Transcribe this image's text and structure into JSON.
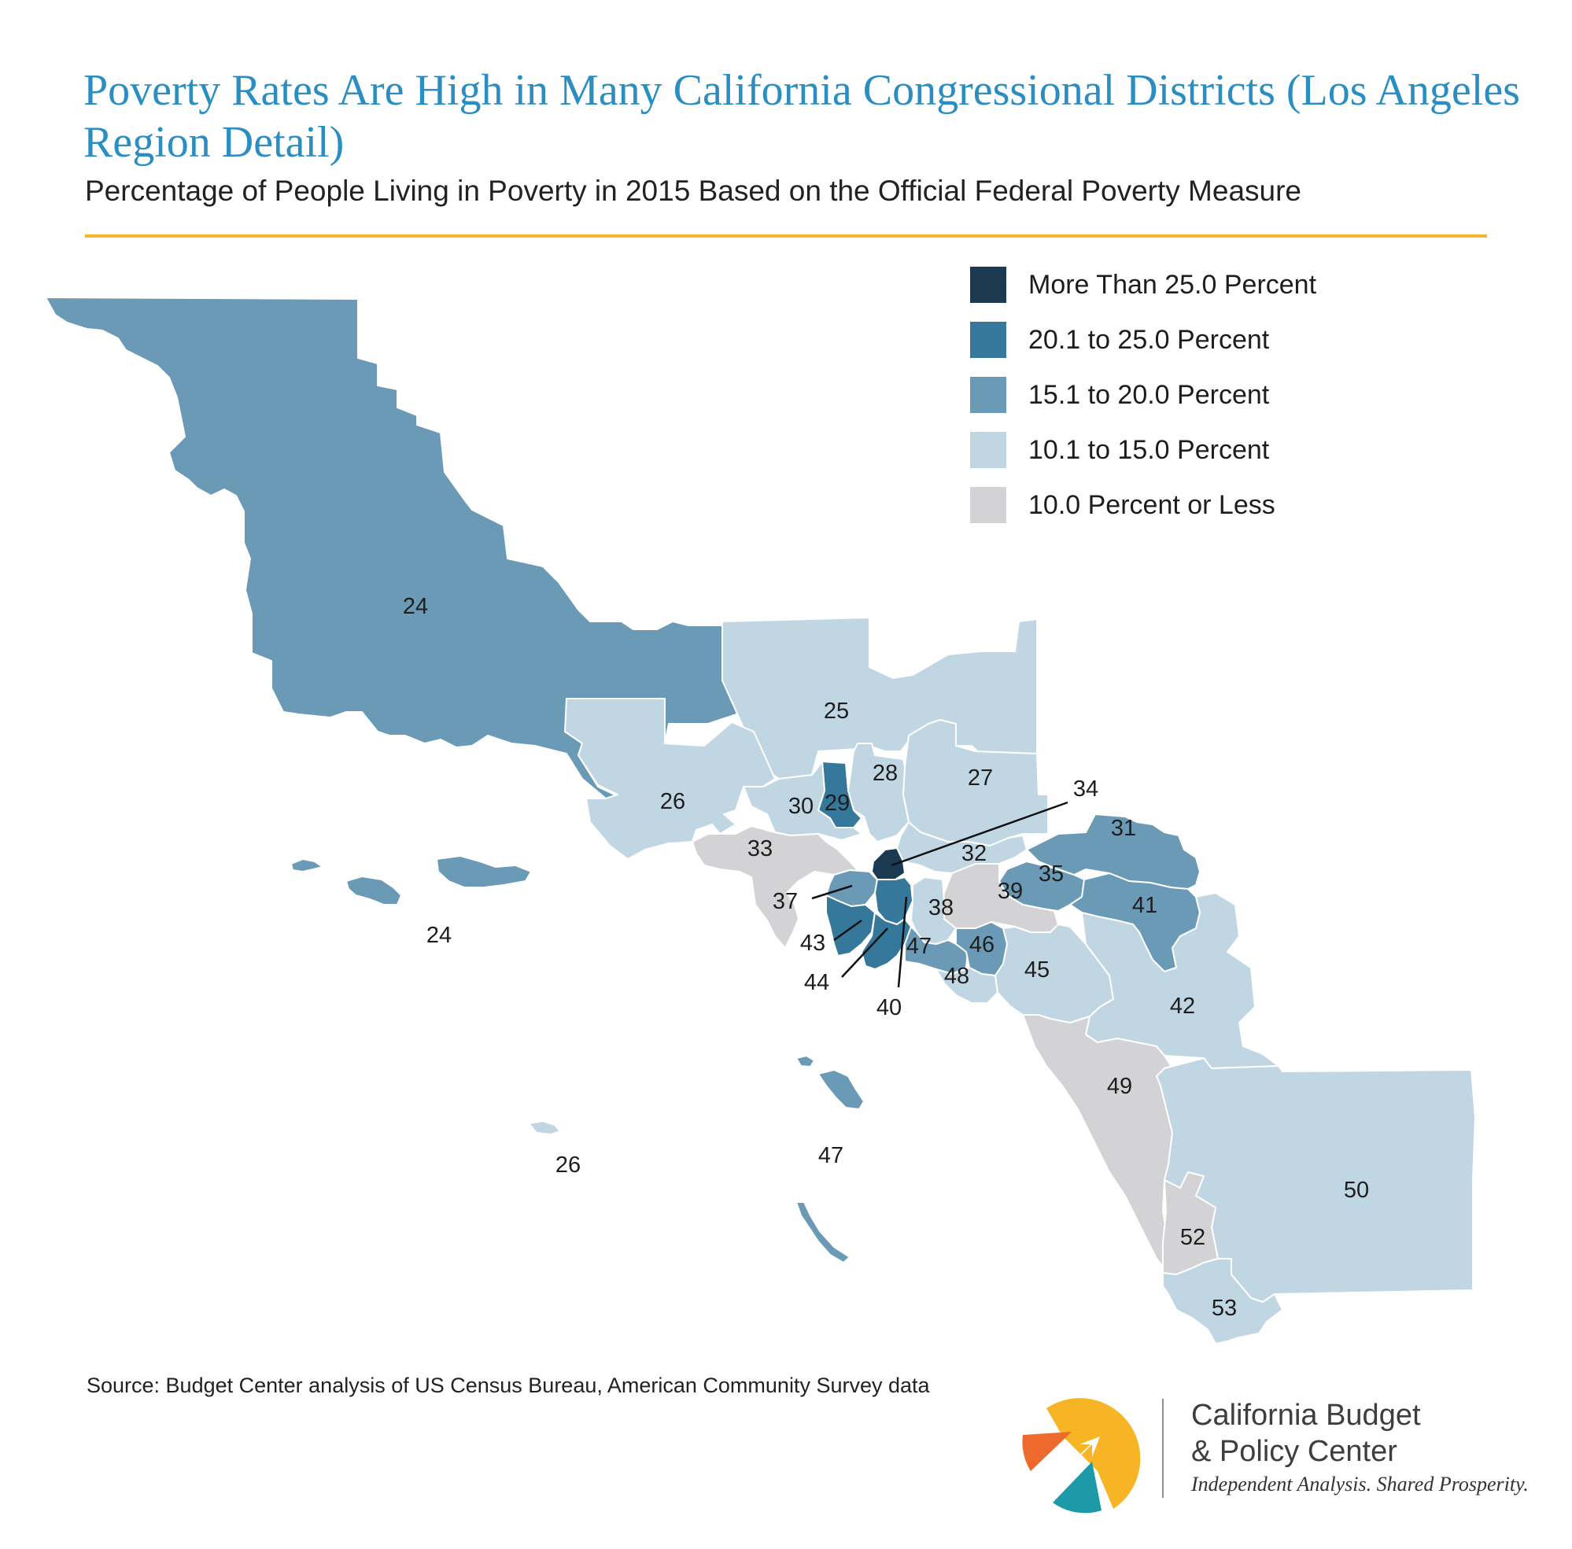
{
  "title": "Poverty Rates Are High in Many California Congressional Districts (Los Angeles Region Detail)",
  "subtitle": "Percentage of People Living in Poverty in 2015 Based on the Official Federal Poverty Measure",
  "colors": {
    "title": "#2a8ec2",
    "rule": "#f5b52a",
    "border": "#ffffff"
  },
  "legend": [
    {
      "label": "More Than 25.0 Percent",
      "color": "#1b3a52"
    },
    {
      "label": "20.1 to 25.0 Percent",
      "color": "#35789c"
    },
    {
      "label": "15.1 to 20.0 Percent",
      "color": "#6a9ab6"
    },
    {
      "label": "10.1 to 15.0 Percent",
      "color": "#c1d6e3"
    },
    {
      "label": "10.0 Percent or Less",
      "color": "#d3d3d5"
    }
  ],
  "districts": [
    {
      "id": "24",
      "category": "15.1 to 20.0 Percent"
    },
    {
      "id": "25",
      "category": "10.1 to 15.0 Percent"
    },
    {
      "id": "26",
      "category": "10.1 to 15.0 Percent"
    },
    {
      "id": "27",
      "category": "10.1 to 15.0 Percent"
    },
    {
      "id": "28",
      "category": "10.1 to 15.0 Percent"
    },
    {
      "id": "29",
      "category": "20.1 to 25.0 Percent"
    },
    {
      "id": "30",
      "category": "10.1 to 15.0 Percent"
    },
    {
      "id": "31",
      "category": "15.1 to 20.0 Percent"
    },
    {
      "id": "32",
      "category": "10.1 to 15.0 Percent"
    },
    {
      "id": "33",
      "category": "10.0 Percent or Less"
    },
    {
      "id": "34",
      "category": "More Than 25.0 Percent"
    },
    {
      "id": "35",
      "category": "15.1 to 20.0 Percent"
    },
    {
      "id": "37",
      "category": "15.1 to 20.0 Percent"
    },
    {
      "id": "38",
      "category": "10.1 to 15.0 Percent"
    },
    {
      "id": "39",
      "category": "10.0 Percent or Less"
    },
    {
      "id": "40",
      "category": "20.1 to 25.0 Percent"
    },
    {
      "id": "41",
      "category": "15.1 to 20.0 Percent"
    },
    {
      "id": "42",
      "category": "10.1 to 15.0 Percent"
    },
    {
      "id": "43",
      "category": "20.1 to 25.0 Percent"
    },
    {
      "id": "44",
      "category": "20.1 to 25.0 Percent"
    },
    {
      "id": "45",
      "category": "10.1 to 15.0 Percent"
    },
    {
      "id": "46",
      "category": "15.1 to 20.0 Percent"
    },
    {
      "id": "47",
      "category": "15.1 to 20.0 Percent"
    },
    {
      "id": "48",
      "category": "10.1 to 15.0 Percent"
    },
    {
      "id": "49",
      "category": "10.0 Percent or Less"
    },
    {
      "id": "50",
      "category": "10.1 to 15.0 Percent"
    },
    {
      "id": "52",
      "category": "10.0 Percent or Less"
    },
    {
      "id": "53",
      "category": "10.1 to 15.0 Percent"
    }
  ],
  "island_labels": {
    "channel_islands_24": "24",
    "san_nicolas_26": "26",
    "catalina_47": "47"
  },
  "source": "Source: Budget Center analysis of US Census Bureau, American Community Survey data",
  "organization": {
    "name_line1": "California Budget",
    "name_line2": "& Policy Center",
    "tagline": "Independent Analysis. Shared Prosperity.",
    "logo_colors": {
      "yellow": "#f7b425",
      "orange": "#ee6a2c",
      "teal": "#1c9aa8"
    }
  }
}
